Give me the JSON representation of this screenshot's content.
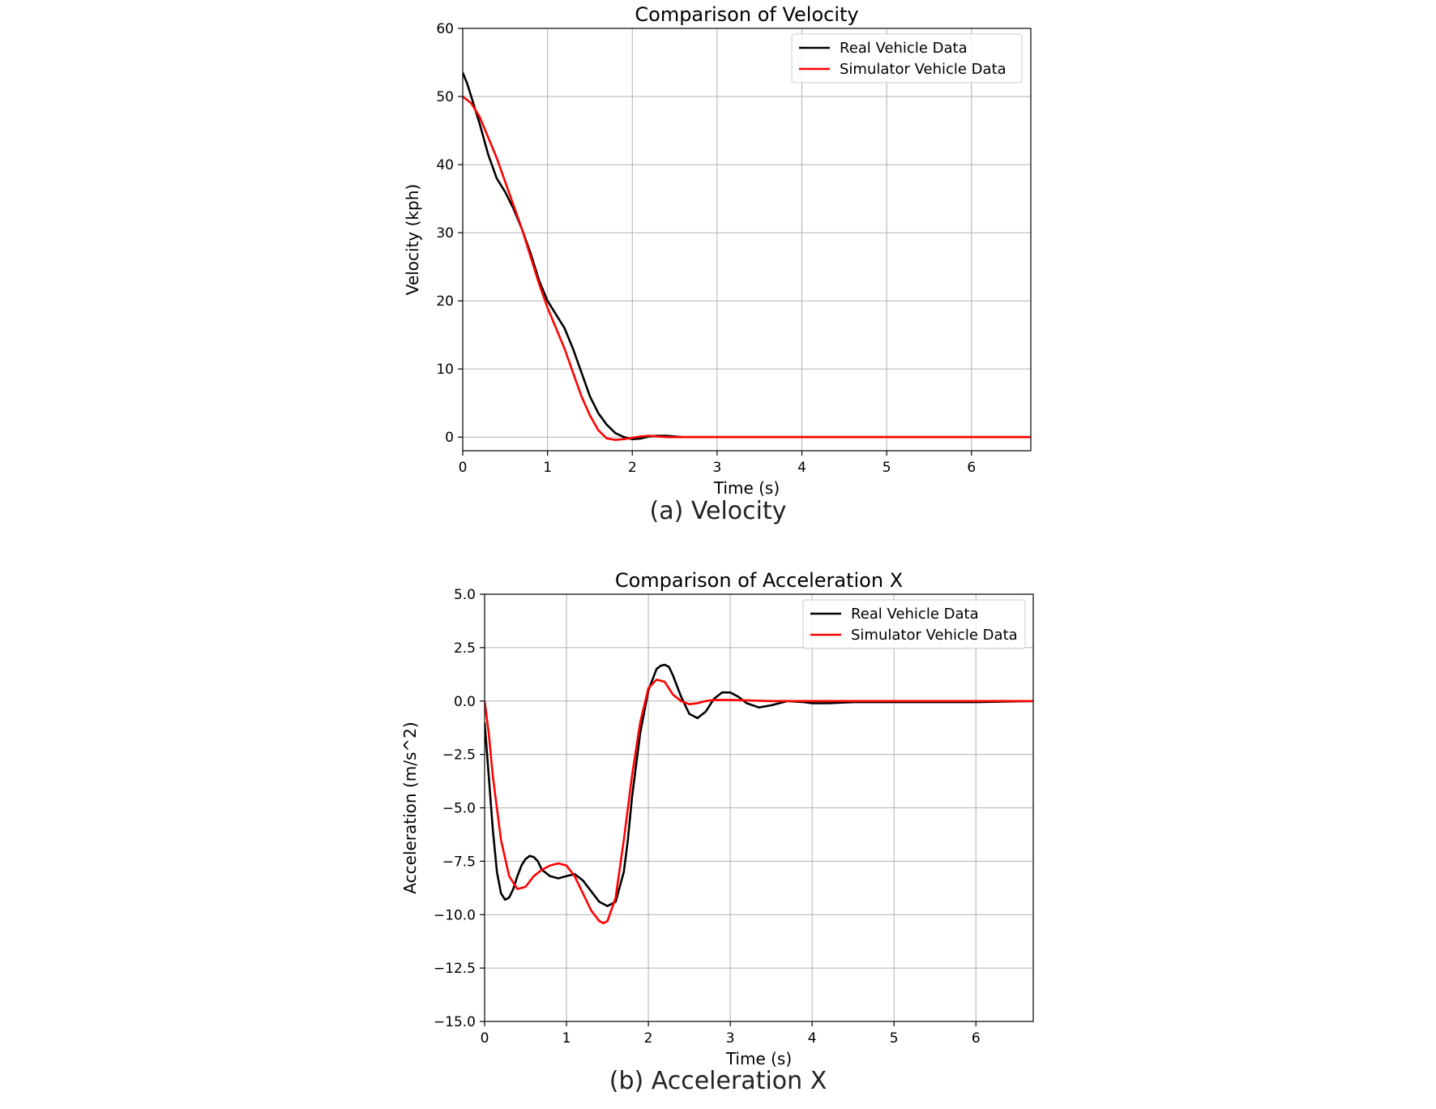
{
  "captions": [
    "(a)  Velocity",
    "(b)  Acceleration  X"
  ],
  "colors": {
    "real": "#000000",
    "simulator": "#ff0000",
    "grid": "#b0b0b0",
    "axis": "#000000"
  },
  "chart_data": [
    {
      "type": "line",
      "title": "Comparison of Velocity",
      "xlabel": "Time (s)",
      "ylabel": "Velocity (kph)",
      "xlim": [
        0,
        6.7
      ],
      "ylim": [
        -2,
        60
      ],
      "xticks": [
        0,
        1,
        2,
        3,
        4,
        5,
        6
      ],
      "yticks": [
        0,
        10,
        20,
        30,
        40,
        50,
        60
      ],
      "xtick_labels": [
        "0",
        "1",
        "2",
        "3",
        "4",
        "5",
        "6"
      ],
      "ytick_labels": [
        "0",
        "10",
        "20",
        "30",
        "40",
        "50",
        "60"
      ],
      "grid": true,
      "legend": "top-right",
      "series": [
        {
          "name": "Real Vehicle Data",
          "color": "#000000",
          "x": [
            0,
            0.05,
            0.1,
            0.2,
            0.3,
            0.4,
            0.5,
            0.6,
            0.7,
            0.8,
            0.9,
            1.0,
            1.1,
            1.2,
            1.3,
            1.4,
            1.5,
            1.6,
            1.7,
            1.8,
            1.9,
            2.0,
            2.1,
            2.2,
            2.3,
            2.4,
            2.5,
            2.6,
            2.8,
            3.0,
            3.5,
            4.0,
            5.0,
            6.0,
            6.7
          ],
          "y": [
            53.5,
            52,
            50,
            46,
            41.5,
            38,
            36,
            33.5,
            30.5,
            27,
            23,
            20,
            18,
            16,
            13,
            9.5,
            6,
            3.5,
            1.8,
            0.6,
            0,
            -0.3,
            -0.2,
            0.1,
            0.2,
            0.2,
            0.1,
            0,
            0,
            0,
            0,
            0,
            0,
            0,
            0
          ]
        },
        {
          "name": "Simulator Vehicle Data",
          "color": "#ff0000",
          "x": [
            0,
            0.1,
            0.2,
            0.3,
            0.4,
            0.5,
            0.6,
            0.7,
            0.8,
            0.9,
            1.0,
            1.1,
            1.2,
            1.3,
            1.4,
            1.5,
            1.6,
            1.7,
            1.8,
            1.9,
            2.0,
            2.1,
            2.2,
            2.3,
            2.4,
            2.5,
            2.7,
            3.0,
            3.5,
            4.0,
            5.0,
            6.0,
            6.7
          ],
          "y": [
            50,
            49,
            47,
            44,
            41,
            37.5,
            34,
            30.5,
            26.5,
            22.5,
            19,
            16,
            13,
            9.5,
            6,
            3.2,
            1,
            -0.2,
            -0.4,
            -0.3,
            -0.1,
            0.1,
            0.2,
            0.1,
            0,
            0,
            0,
            0,
            0,
            0,
            0,
            0,
            0
          ]
        }
      ]
    },
    {
      "type": "line",
      "title": "Comparison of Acceleration X",
      "xlabel": "Time (s)",
      "ylabel": "Acceleration (m/s^2)",
      "xlim": [
        0,
        6.7
      ],
      "ylim": [
        -15,
        5
      ],
      "xticks": [
        0,
        1,
        2,
        3,
        4,
        5,
        6
      ],
      "yticks": [
        5,
        2.5,
        0,
        -2.5,
        -5,
        -7.5,
        -10,
        -12.5,
        -15
      ],
      "xtick_labels": [
        "0",
        "1",
        "2",
        "3",
        "4",
        "5",
        "6"
      ],
      "ytick_labels": [
        "5.0",
        "2.5",
        "0.0",
        "−2.5",
        "−5.0",
        "−7.5",
        "−10.0",
        "−12.5",
        "−15.0"
      ],
      "grid": true,
      "legend": "top-right",
      "series": [
        {
          "name": "Real Vehicle Data",
          "color": "#000000",
          "x": [
            0,
            0.05,
            0.1,
            0.15,
            0.2,
            0.25,
            0.3,
            0.35,
            0.4,
            0.45,
            0.5,
            0.55,
            0.6,
            0.65,
            0.7,
            0.8,
            0.9,
            1.0,
            1.1,
            1.2,
            1.3,
            1.4,
            1.5,
            1.6,
            1.7,
            1.75,
            1.8,
            1.9,
            2.0,
            2.1,
            2.15,
            2.2,
            2.25,
            2.3,
            2.4,
            2.5,
            2.6,
            2.7,
            2.8,
            2.9,
            3.0,
            3.1,
            3.2,
            3.35,
            3.5,
            3.7,
            3.9,
            4.0,
            4.2,
            4.5,
            5.0,
            5.5,
            6.0,
            6.7
          ],
          "y": [
            -1,
            -3.5,
            -6,
            -8,
            -9,
            -9.3,
            -9.2,
            -8.8,
            -8.2,
            -7.7,
            -7.4,
            -7.25,
            -7.3,
            -7.5,
            -7.9,
            -8.2,
            -8.3,
            -8.2,
            -8.1,
            -8.4,
            -8.9,
            -9.4,
            -9.6,
            -9.4,
            -8,
            -6.5,
            -4.5,
            -1.5,
            0.5,
            1.5,
            1.65,
            1.7,
            1.6,
            1.2,
            0.2,
            -0.6,
            -0.8,
            -0.5,
            0.1,
            0.4,
            0.4,
            0.2,
            -0.1,
            -0.3,
            -0.2,
            0,
            -0.05,
            -0.1,
            -0.1,
            -0.05,
            -0.05,
            -0.05,
            -0.05,
            0
          ]
        },
        {
          "name": "Simulator Vehicle Data",
          "color": "#ff0000",
          "x": [
            0,
            0.05,
            0.1,
            0.2,
            0.3,
            0.4,
            0.5,
            0.6,
            0.7,
            0.8,
            0.9,
            1.0,
            1.1,
            1.2,
            1.3,
            1.4,
            1.45,
            1.5,
            1.6,
            1.7,
            1.8,
            1.9,
            2.0,
            2.1,
            2.2,
            2.3,
            2.4,
            2.5,
            2.6,
            2.7,
            2.8,
            3.0,
            3.5,
            4.0,
            5.0,
            6.0,
            6.7
          ],
          "y": [
            0,
            -1.5,
            -3.5,
            -6.5,
            -8.2,
            -8.8,
            -8.7,
            -8.2,
            -7.9,
            -7.7,
            -7.6,
            -7.7,
            -8.2,
            -9,
            -9.8,
            -10.3,
            -10.4,
            -10.3,
            -9.2,
            -6.5,
            -3.5,
            -1,
            0.6,
            1.0,
            0.9,
            0.3,
            0,
            -0.15,
            -0.1,
            0,
            0.05,
            0.05,
            0,
            0,
            0,
            0,
            0
          ]
        }
      ]
    }
  ]
}
